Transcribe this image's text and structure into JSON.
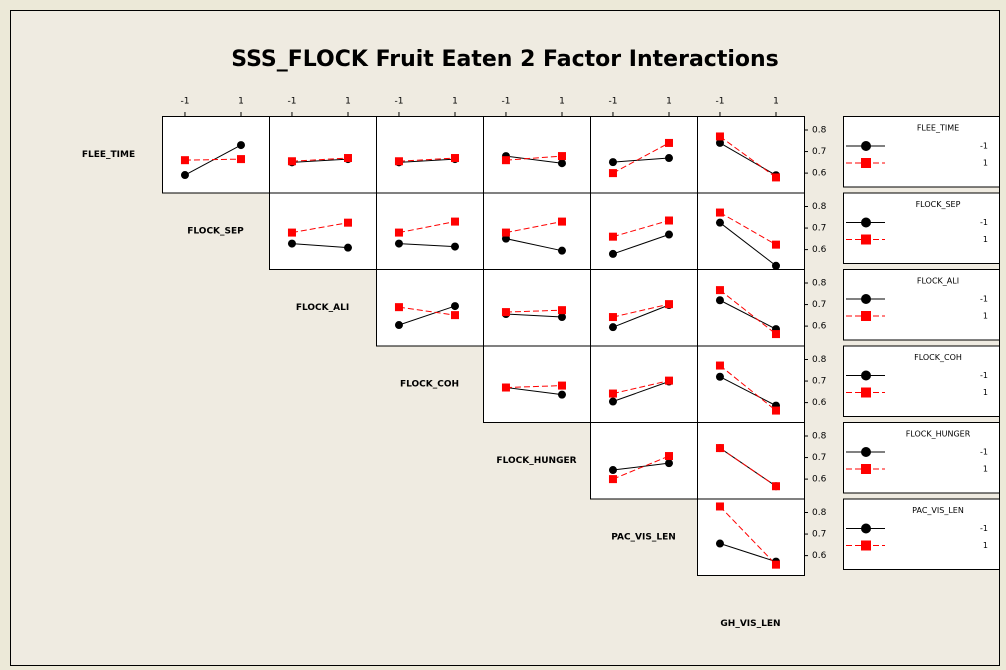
{
  "chart_data": {
    "type": "interaction-matrix",
    "title": "SSS_FLOCK Fruit Eaten 2 Factor Interactions",
    "factors": [
      "FLEE_TIME",
      "FLOCK_SEP",
      "FLOCK_ALI",
      "FLOCK_COH",
      "FLOCK_HUNGER",
      "PAC_VIS_LEN",
      "GH_VIS_LEN"
    ],
    "levels": [
      -1,
      1
    ],
    "colors": [
      "#000000",
      "#ff0000"
    ],
    "xlim": [
      -1.82,
      2
    ],
    "ylim": [
      0.51,
      0.865
    ],
    "yticks": [
      0.6,
      0.7,
      0.8
    ],
    "panels": [
      [
        [
          [
            0.591,
            0.73
          ],
          [
            0.66,
            0.665
          ]
        ],
        [
          [
            0.65,
            0.665
          ],
          [
            0.655,
            0.67
          ]
        ],
        [
          [
            0.65,
            0.665
          ],
          [
            0.655,
            0.67
          ]
        ],
        [
          [
            0.679,
            0.646
          ],
          [
            0.66,
            0.679
          ]
        ],
        [
          [
            0.651,
            0.67
          ],
          [
            0.6,
            0.74
          ]
        ],
        [
          [
            0.74,
            0.59
          ],
          [
            0.77,
            0.58
          ]
        ]
      ],
      [
        [
          [
            0.628,
            0.609
          ],
          [
            0.679,
            0.725
          ]
        ],
        [
          [
            0.628,
            0.614
          ],
          [
            0.679,
            0.73
          ]
        ],
        [
          [
            0.651,
            0.595
          ],
          [
            0.679,
            0.73
          ]
        ],
        [
          [
            0.58,
            0.67
          ],
          [
            0.66,
            0.735
          ]
        ],
        [
          [
            0.725,
            0.525
          ],
          [
            0.772,
            0.623
          ]
        ]
      ],
      [
        [
          [
            0.605,
            0.693
          ],
          [
            0.688,
            0.651
          ]
        ],
        [
          [
            0.656,
            0.642
          ],
          [
            0.665,
            0.674
          ]
        ],
        [
          [
            0.595,
            0.698
          ],
          [
            0.642,
            0.702
          ]
        ],
        [
          [
            0.72,
            0.586
          ],
          [
            0.767,
            0.563
          ]
        ]
      ],
      [
        [
          [
            0.67,
            0.637
          ],
          [
            0.67,
            0.679
          ]
        ],
        [
          [
            0.605,
            0.698
          ],
          [
            0.642,
            0.702
          ]
        ],
        [
          [
            0.72,
            0.586
          ],
          [
            0.772,
            0.563
          ]
        ]
      ],
      [
        [
          [
            0.642,
            0.674
          ],
          [
            0.6,
            0.707
          ]
        ],
        [
          [
            0.744,
            0.567
          ],
          [
            0.744,
            0.567
          ]
        ]
      ],
      [
        [
          [
            0.656,
            0.572
          ],
          [
            0.828,
            0.558
          ]
        ]
      ]
    ]
  }
}
